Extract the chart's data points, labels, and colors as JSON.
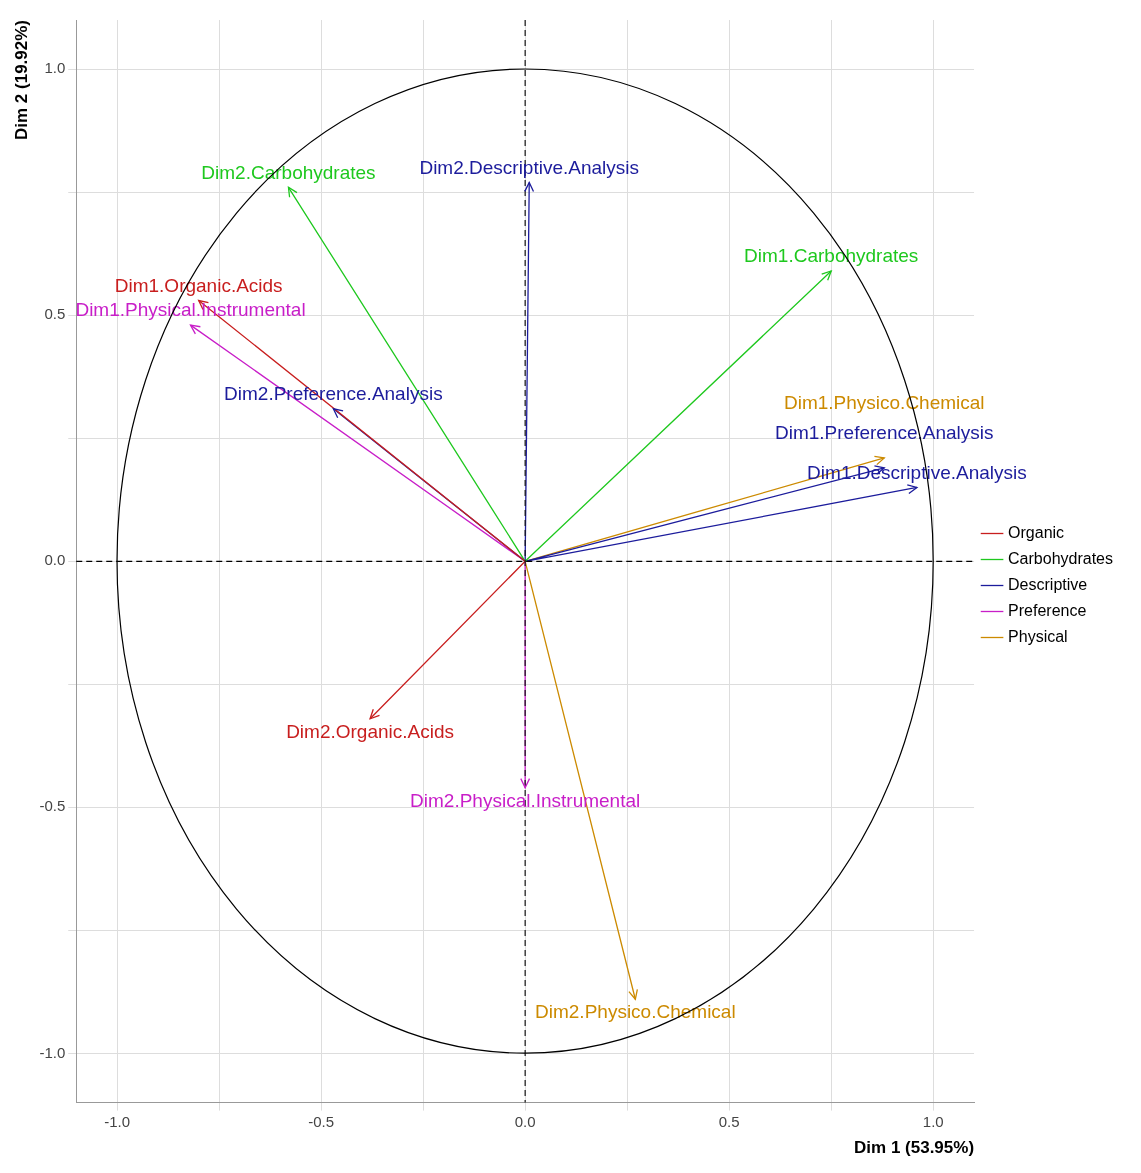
{
  "chart_data": {
    "type": "line",
    "xlabel": "Dim 1 (53.95%)",
    "ylabel": "Dim 2 (19.92%)",
    "xlim": [
      -1.1,
      1.1
    ],
    "ylim": [
      -1.1,
      1.1
    ],
    "xticks": [
      {
        "value": -1,
        "label": "-1.0"
      },
      {
        "value": -0.75,
        "label": null
      },
      -0.5,
      {
        "value": -0.25,
        "label": null
      },
      {
        "value": 0,
        "label": "0.0"
      },
      {
        "value": 0.25,
        "label": null
      },
      0.5,
      {
        "value": 0.75,
        "label": null
      },
      {
        "value": 1,
        "label": "1.0"
      }
    ],
    "yticks": [
      {
        "value": -1,
        "label": "-1.0"
      },
      {
        "value": -0.75,
        "label": null
      },
      -0.5,
      {
        "value": -0.25,
        "label": null
      },
      {
        "value": 0,
        "label": "0.0"
      },
      {
        "value": 0.25,
        "label": null
      },
      0.5,
      {
        "value": 0.75,
        "label": null
      },
      {
        "value": 1,
        "label": "1.0"
      }
    ],
    "grid": true,
    "legend": "right",
    "marker": "none",
    "line_style": "solid",
    "ref_lines": [
      {
        "axis": "x",
        "value": 0,
        "color": "#141414",
        "line_style": "dashed"
      },
      {
        "axis": "y",
        "value": 0,
        "color": "#000000",
        "line_style": "dashed"
      }
    ],
    "series": [
      {
        "name": "Organic",
        "color": "#c81e1e",
        "x": [
          0,
          -0.8,
          null,
          0,
          -0.38
        ],
        "values": [
          0,
          0.53,
          null,
          0,
          -0.32
        ],
        "value_labels": [
          null,
          "Dim1.Organic.Acids",
          null,
          null,
          "Dim2.Organic.Acids"
        ]
      },
      {
        "name": "Carbohydrates",
        "color": "#1ec81e",
        "x": [
          0,
          0.75,
          null,
          0,
          -0.58
        ],
        "values": [
          0,
          0.59,
          null,
          0,
          0.76
        ],
        "value_labels": [
          null,
          "Dim1.Carbohydrates",
          null,
          null,
          "Dim2.Carbohydrates"
        ]
      },
      {
        "name": "Descriptive",
        "color": "#1c1c9c",
        "x": [
          0,
          0.96,
          null,
          0,
          0.01,
          null,
          0,
          0.88,
          null,
          0,
          -0.47
        ],
        "values": [
          0,
          0.15,
          null,
          0,
          0.77,
          null,
          0,
          0.19,
          null,
          0,
          0.31
        ],
        "value_labels": [
          null,
          "Dim1.Descriptive.Analysis",
          null,
          null,
          "Dim2.Descriptive.Analysis",
          null,
          null,
          "Dim1.Preference.Analysis",
          null,
          null,
          "Dim2.Preference.Analysis"
        ]
      },
      {
        "name": "Preference",
        "color": "#c81ec8",
        "x": [
          0,
          -0.82,
          null,
          0,
          0
        ],
        "values": [
          0,
          0.48,
          null,
          0,
          -0.46
        ],
        "value_labels": [
          null,
          "Dim1.Physical.Instrumental",
          null,
          null,
          "Dim2.Physical.Instrumental"
        ]
      },
      {
        "name": "Physical",
        "color": "#cc8a00",
        "x": [
          0,
          0.88,
          null,
          0,
          0.27
        ],
        "values": [
          0,
          0.21,
          null,
          0,
          -0.89
        ],
        "value_labels": [
          null,
          "Dim1.Physico.Chemical",
          null,
          null,
          "Dim2.Physico.Chemical"
        ]
      }
    ]
  }
}
